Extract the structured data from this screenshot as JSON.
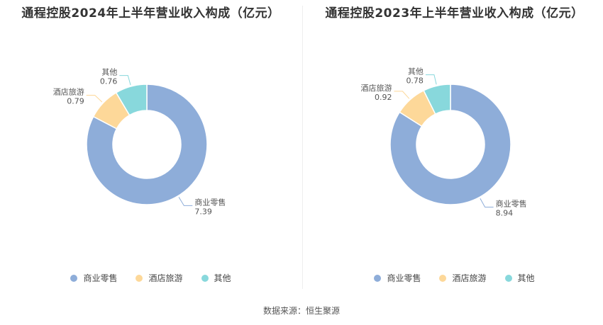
{
  "chart_data": [
    {
      "type": "pie",
      "title": "通程控股2024年上半年营业收入构成（亿元）",
      "categories": [
        "商业零售",
        "酒店旅游",
        "其他"
      ],
      "values": [
        7.39,
        0.79,
        0.76
      ],
      "colors": [
        "#8eadd9",
        "#fdd899",
        "#88d8dc"
      ],
      "legend_position": "bottom"
    },
    {
      "type": "pie",
      "title": "通程控股2023年上半年营业收入构成（亿元）",
      "categories": [
        "商业零售",
        "酒店旅游",
        "其他"
      ],
      "values": [
        8.94,
        0.92,
        0.78
      ],
      "colors": [
        "#8eadd9",
        "#fdd899",
        "#88d8dc"
      ],
      "legend_position": "bottom"
    }
  ],
  "legend": [
    "商业零售",
    "酒店旅游",
    "其他"
  ],
  "source": "数据来源：恒生聚源"
}
